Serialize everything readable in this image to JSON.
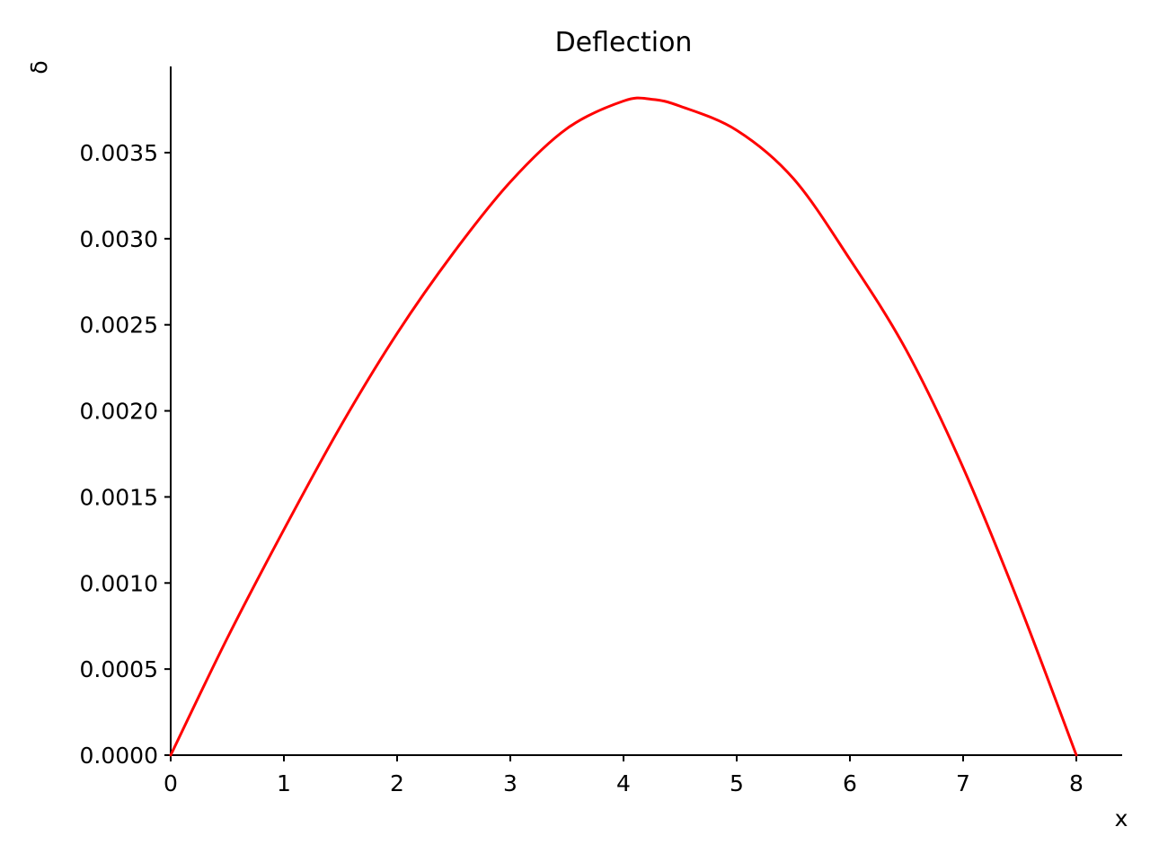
{
  "chart_data": {
    "type": "line",
    "title": "Deflection",
    "xlabel": "x",
    "ylabel": "δ",
    "xlim": [
      0,
      8.4
    ],
    "ylim": [
      0,
      0.00399
    ],
    "x_ticks": [
      0,
      1,
      2,
      3,
      4,
      5,
      6,
      7,
      8
    ],
    "x_tick_labels": [
      "0",
      "1",
      "2",
      "3",
      "4",
      "5",
      "6",
      "7",
      "8"
    ],
    "y_ticks": [
      0,
      0.0005,
      0.001,
      0.0015,
      0.002,
      0.0025,
      0.003,
      0.0035
    ],
    "y_tick_labels": [
      "0.0000",
      "0.0005",
      "0.0010",
      "0.0015",
      "0.0020",
      "0.0025",
      "0.0030",
      "0.0035"
    ],
    "grid": false,
    "legend": "none",
    "series": [
      {
        "color": "#ff0000",
        "x": [
          0,
          0.5,
          1,
          1.5,
          2,
          2.5,
          3,
          3.5,
          4,
          4.25,
          4.5,
          5,
          5.5,
          6,
          6.5,
          7,
          7.5,
          8
        ],
        "y": [
          0,
          0.00068,
          0.00131,
          0.00191,
          0.00245,
          0.00292,
          0.00333,
          0.00364,
          0.0038,
          0.00381,
          0.00377,
          0.00363,
          0.00335,
          0.00288,
          0.00235,
          0.00167,
          0.00087,
          0
        ]
      }
    ]
  }
}
